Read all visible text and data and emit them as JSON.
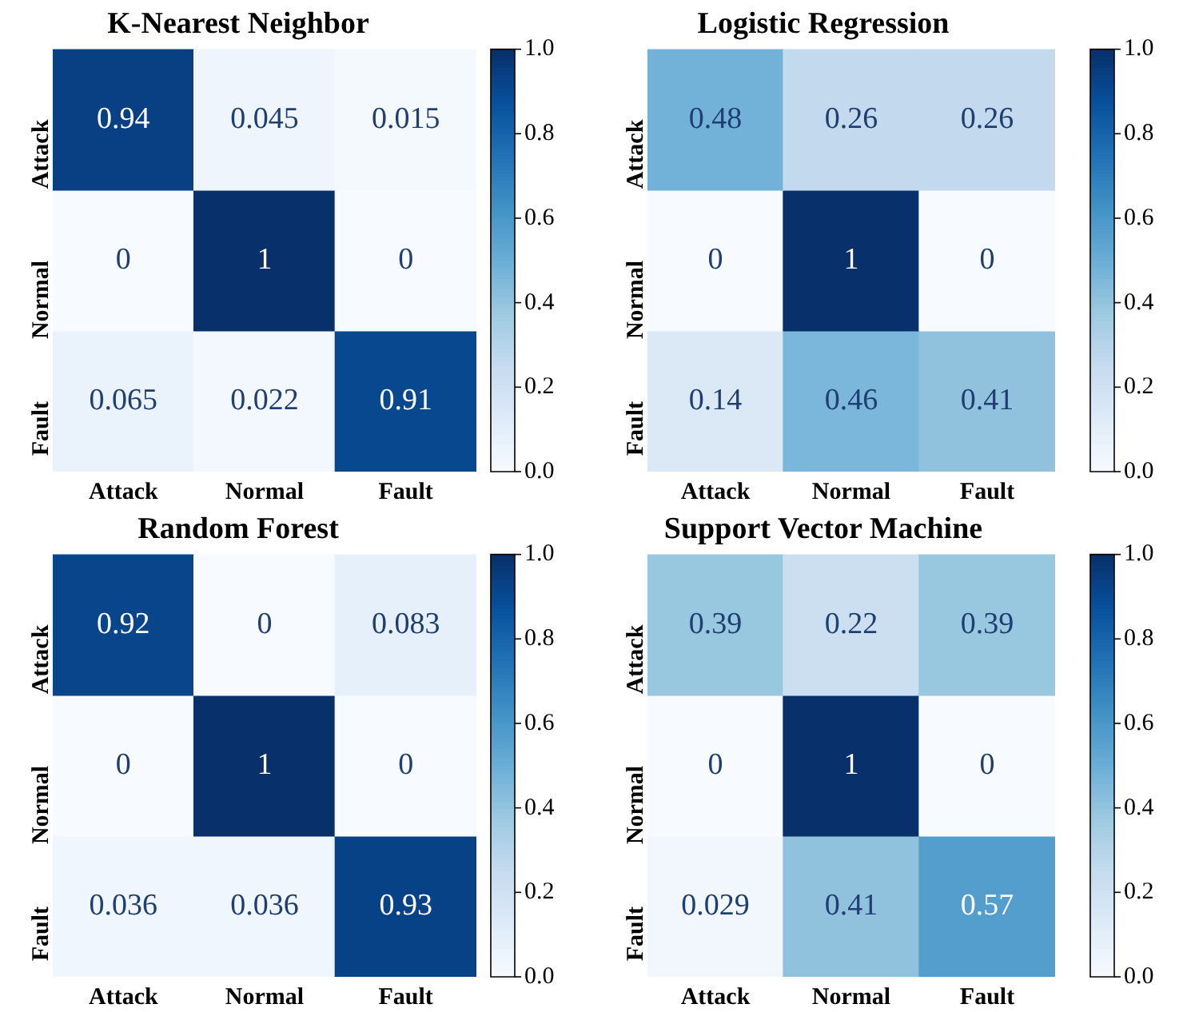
{
  "chart_data": [
    {
      "type": "heatmap",
      "title": "K-Nearest Neighbor",
      "categories": [
        "Attack",
        "Normal",
        "Fault"
      ],
      "y_categories": [
        "Attack",
        "Normal",
        "Fault"
      ],
      "cells": [
        [
          0.94,
          0.045,
          0.015
        ],
        [
          0,
          1,
          0
        ],
        [
          0.065,
          0.022,
          0.91
        ]
      ],
      "clim": [
        0,
        1
      ],
      "cticks": [
        {
          "value": 0,
          "label": "0.0"
        },
        {
          "value": 0.2,
          "label": "0.2"
        },
        {
          "value": 0.4,
          "label": "0.4"
        },
        {
          "value": 0.6,
          "label": "0.6"
        },
        {
          "value": 0.8,
          "label": "0.8"
        },
        {
          "value": 1,
          "label": "1.0"
        }
      ],
      "data_labels": true
    },
    {
      "type": "heatmap",
      "title": "Logistic Regression",
      "categories": [
        "Attack",
        "Normal",
        "Fault"
      ],
      "y_categories": [
        "Attack",
        "Normal",
        "Fault"
      ],
      "cells": [
        [
          0.48,
          0.26,
          0.26
        ],
        [
          0,
          1,
          0
        ],
        [
          0.14,
          0.46,
          0.41
        ]
      ],
      "clim": [
        0,
        1
      ],
      "cticks": [
        {
          "value": 0,
          "label": "0.0"
        },
        {
          "value": 0.2,
          "label": "0.2"
        },
        {
          "value": 0.4,
          "label": "0.4"
        },
        {
          "value": 0.6,
          "label": "0.6"
        },
        {
          "value": 0.8,
          "label": "0.8"
        },
        {
          "value": 1,
          "label": "1.0"
        }
      ],
      "data_labels": true
    },
    {
      "type": "heatmap",
      "title": "Random Forest",
      "categories": [
        "Attack",
        "Normal",
        "Fault"
      ],
      "y_categories": [
        "Attack",
        "Normal",
        "Fault"
      ],
      "cells": [
        [
          0.92,
          0,
          0.083
        ],
        [
          0,
          1,
          0
        ],
        [
          0.036,
          0.036,
          0.93
        ]
      ],
      "clim": [
        0,
        1
      ],
      "cticks": [
        {
          "value": 0,
          "label": "0.0"
        },
        {
          "value": 0.2,
          "label": "0.2"
        },
        {
          "value": 0.4,
          "label": "0.4"
        },
        {
          "value": 0.6,
          "label": "0.6"
        },
        {
          "value": 0.8,
          "label": "0.8"
        },
        {
          "value": 1,
          "label": "1.0"
        }
      ],
      "data_labels": true
    },
    {
      "type": "heatmap",
      "title": "Support Vector Machine",
      "categories": [
        "Attack",
        "Normal",
        "Fault"
      ],
      "y_categories": [
        "Attack",
        "Normal",
        "Fault"
      ],
      "cells": [
        [
          0.39,
          0.22,
          0.39
        ],
        [
          0,
          1,
          0
        ],
        [
          0.029,
          0.41,
          0.57
        ]
      ],
      "clim": [
        0,
        1
      ],
      "cticks": [
        {
          "value": 0,
          "label": "0.0"
        },
        {
          "value": 0.2,
          "label": "0.2"
        },
        {
          "value": 0.4,
          "label": "0.4"
        },
        {
          "value": 0.6,
          "label": "0.6"
        },
        {
          "value": 0.8,
          "label": "0.8"
        },
        {
          "value": 1,
          "label": "1.0"
        }
      ],
      "data_labels": true
    }
  ]
}
